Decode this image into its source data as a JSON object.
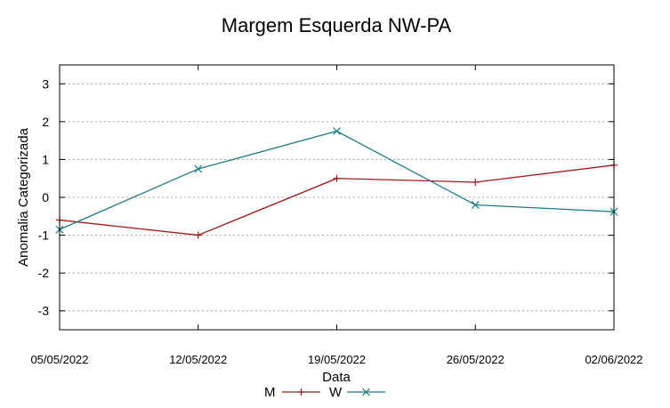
{
  "chart_data": {
    "type": "line",
    "title": "Margem Esquerda NW-PA",
    "xlabel": "Data",
    "ylabel": "Anomalia Categorizada",
    "categories": [
      "05/05/2022",
      "12/05/2022",
      "19/05/2022",
      "26/05/2022",
      "02/06/2022"
    ],
    "ylim": [
      -3.5,
      3.5
    ],
    "yticks": [
      -3,
      -2,
      -1,
      0,
      1,
      2,
      3
    ],
    "grid": true,
    "legend_position": "bottom-center",
    "series": [
      {
        "name": "M",
        "color": "#9b1b1b",
        "marker": "plus",
        "values": [
          -0.6,
          -1.0,
          0.5,
          0.4,
          0.85
        ]
      },
      {
        "name": "W",
        "color": "#1c7a80",
        "marker": "cross",
        "values": [
          -0.85,
          0.75,
          1.75,
          -0.2,
          -0.38
        ]
      }
    ]
  }
}
